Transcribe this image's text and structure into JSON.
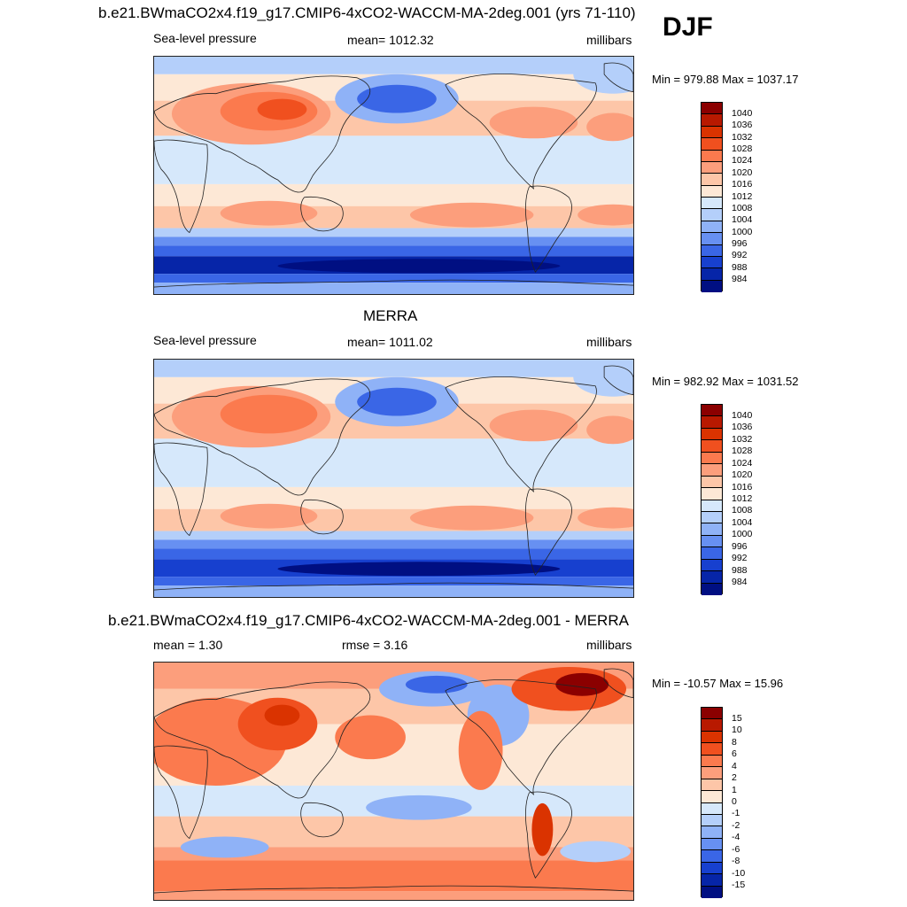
{
  "season": "DJF",
  "panels": [
    {
      "title": "b.e21.BWmaCO2x4.f19_g17.CMIP6-4xCO2-WACCM-MA-2deg.001 (yrs 71-110)",
      "left": "Sea-level pressure",
      "center": "mean= 1012.32",
      "right": "millibars",
      "minmax": "Min = 979.88 Max = 1037.17",
      "colorbar": {
        "labels": [
          "1040",
          "1036",
          "1032",
          "1028",
          "1024",
          "1020",
          "1016",
          "1012",
          "1008",
          "1004",
          "1000",
          "996",
          "992",
          "988",
          "984"
        ],
        "colors": [
          "#8b0000",
          "#b81900",
          "#da3300",
          "#f0501f",
          "#fb7a4e",
          "#fc9e7c",
          "#fdc6a8",
          "#fde8d6",
          "#d6e8fb",
          "#b4cffa",
          "#8fb2f7",
          "#6790f2",
          "#3a66e6",
          "#1740cf",
          "#0625a8",
          "#000f82"
        ]
      }
    },
    {
      "title": "MERRA",
      "left": "Sea-level pressure",
      "center": "mean= 1011.02",
      "right": "millibars",
      "minmax": "Min = 982.92 Max = 1031.52",
      "colorbar": {
        "labels": [
          "1040",
          "1036",
          "1032",
          "1028",
          "1024",
          "1020",
          "1016",
          "1012",
          "1008",
          "1004",
          "1000",
          "996",
          "992",
          "988",
          "984"
        ],
        "colors": [
          "#8b0000",
          "#b81900",
          "#da3300",
          "#f0501f",
          "#fb7a4e",
          "#fc9e7c",
          "#fdc6a8",
          "#fde8d6",
          "#d6e8fb",
          "#b4cffa",
          "#8fb2f7",
          "#6790f2",
          "#3a66e6",
          "#1740cf",
          "#0625a8",
          "#000f82"
        ]
      }
    },
    {
      "title": "b.e21.BWmaCO2x4.f19_g17.CMIP6-4xCO2-WACCM-MA-2deg.001 - MERRA",
      "left": "mean =   1.30",
      "center": "rmse =   3.16",
      "right": "millibars",
      "minmax": "Min = -10.57 Max =  15.96",
      "colorbar": {
        "labels": [
          "15",
          "10",
          "8",
          "6",
          "4",
          "2",
          "1",
          "0",
          "-1",
          "-2",
          "-4",
          "-6",
          "-8",
          "-10",
          "-15"
        ],
        "colors": [
          "#8b0000",
          "#b81900",
          "#da3300",
          "#f0501f",
          "#fb7a4e",
          "#fc9e7c",
          "#fdc6a8",
          "#fde8d6",
          "#d6e8fb",
          "#b4cffa",
          "#8fb2f7",
          "#6790f2",
          "#3a66e6",
          "#1740cf",
          "#0625a8",
          "#000f82"
        ]
      }
    }
  ]
}
